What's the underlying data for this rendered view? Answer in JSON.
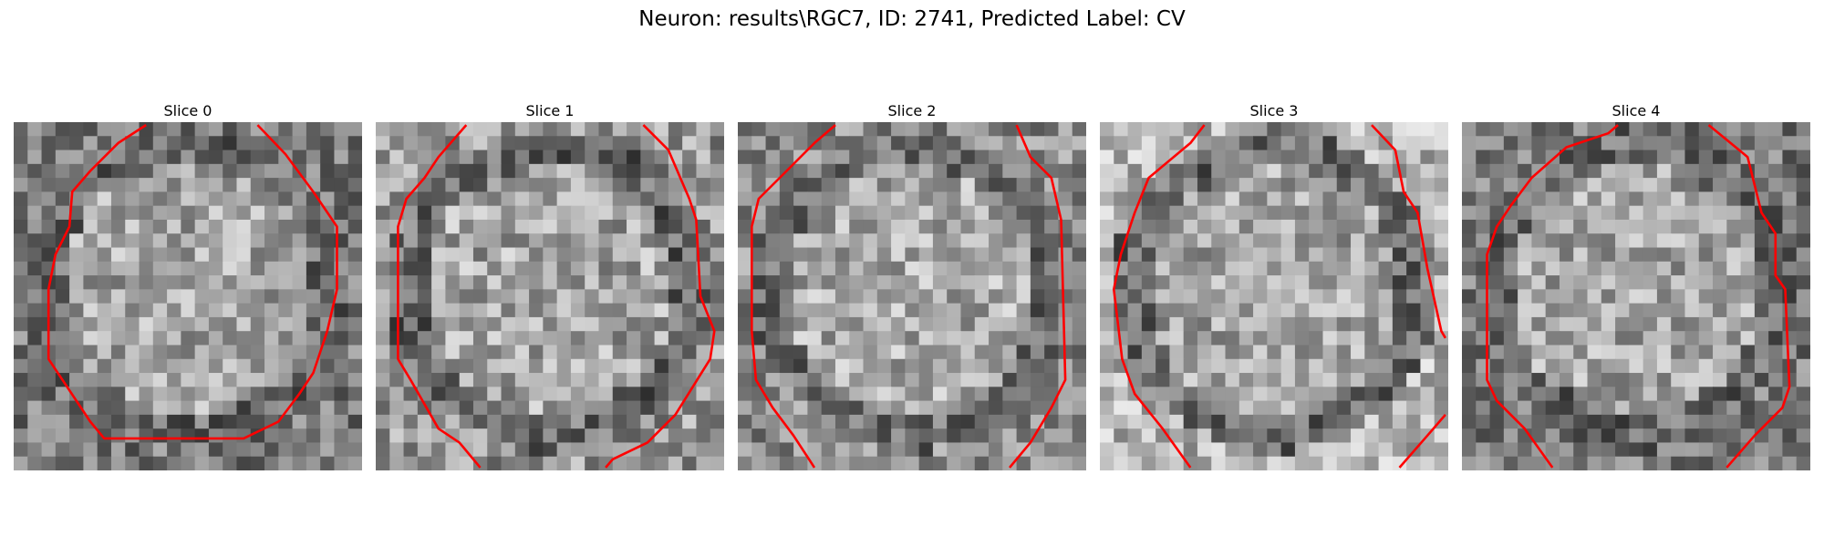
{
  "figure": {
    "title": "Neuron: results\\RGC7, ID: 2741, Predicted Label: CV"
  },
  "contour_color": "#ff0000",
  "colormap": "gray",
  "slices": [
    {
      "title": "Slice 0",
      "mean": 150,
      "spread": 110,
      "edge": 80
    },
    {
      "title": "Slice 1",
      "mean": 150,
      "spread": 120,
      "edge": 110
    },
    {
      "title": "Slice 2",
      "mean": 155,
      "spread": 110,
      "edge": 100
    },
    {
      "title": "Slice 3",
      "mean": 150,
      "spread": 110,
      "edge": 140
    },
    {
      "title": "Slice 4",
      "mean": 150,
      "spread": 110,
      "edge": 80
    }
  ]
}
